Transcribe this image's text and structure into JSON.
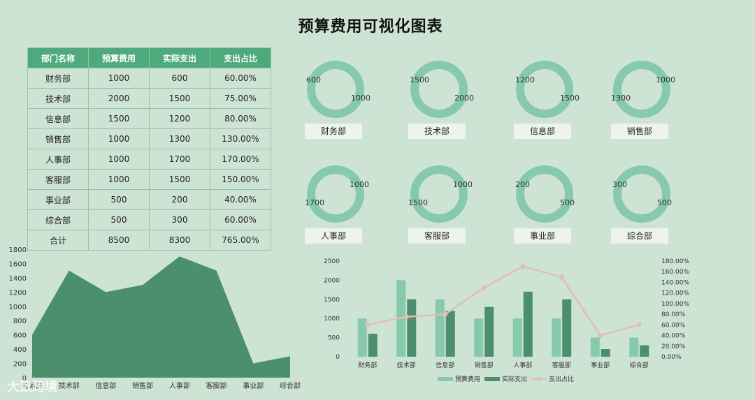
{
  "title": "预算费用可视化图表",
  "table": {
    "headers": [
      "部门名称",
      "预算费用",
      "实际支出",
      "支出占比"
    ],
    "rows": [
      [
        "财务部",
        "1000",
        "600",
        "60.00%"
      ],
      [
        "技术部",
        "2000",
        "1500",
        "75.00%"
      ],
      [
        "信息部",
        "1500",
        "1200",
        "80.00%"
      ],
      [
        "销售部",
        "1000",
        "1300",
        "130.00%"
      ],
      [
        "人事部",
        "1000",
        "1700",
        "170.00%"
      ],
      [
        "客服部",
        "1000",
        "1500",
        "150.00%"
      ],
      [
        "事业部",
        "500",
        "200",
        "40.00%"
      ],
      [
        "综合部",
        "500",
        "300",
        "60.00%"
      ],
      [
        "合计",
        "8500",
        "8300",
        "765.00%"
      ]
    ]
  },
  "colors": {
    "budget": "#86c9ad",
    "actual": "#4b8f6c",
    "ratio": "#e3bfb0",
    "header": "#4ea97d",
    "background": "#cde3d4"
  },
  "watermark": "大数跨境",
  "chart_data": [
    {
      "type": "pie",
      "variant": "donut-grid",
      "charts": [
        {
          "label": "财务部",
          "budget": 1000,
          "actual": 600
        },
        {
          "label": "技术部",
          "budget": 2000,
          "actual": 1500
        },
        {
          "label": "信息部",
          "budget": 1500,
          "actual": 1200
        },
        {
          "label": "销售部",
          "budget": 1000,
          "actual": 1300
        },
        {
          "label": "人事部",
          "budget": 1000,
          "actual": 1700
        },
        {
          "label": "客服部",
          "budget": 1000,
          "actual": 1500
        },
        {
          "label": "事业部",
          "budget": 500,
          "actual": 200
        },
        {
          "label": "综合部",
          "budget": 500,
          "actual": 300
        }
      ]
    },
    {
      "type": "area",
      "categories": [
        "财务部",
        "技术部",
        "信息部",
        "销售部",
        "人事部",
        "客服部",
        "事业部",
        "综合部"
      ],
      "values": [
        600,
        1500,
        1200,
        1300,
        1700,
        1500,
        200,
        300
      ],
      "ylim": [
        0,
        1800
      ],
      "yticks": [
        0,
        200,
        400,
        600,
        800,
        1000,
        1200,
        1400,
        1600,
        1800
      ]
    },
    {
      "type": "bar",
      "categories": [
        "财务部",
        "技术部",
        "信息部",
        "销售部",
        "人事部",
        "客服部",
        "事业部",
        "综合部"
      ],
      "series": [
        {
          "name": "预算费用",
          "values": [
            1000,
            2000,
            1500,
            1000,
            1000,
            1000,
            500,
            500
          ]
        },
        {
          "name": "实际支出",
          "values": [
            600,
            1500,
            1200,
            1300,
            1700,
            1500,
            200,
            300
          ]
        },
        {
          "name": "支出占比",
          "kind": "line",
          "axis": "right",
          "values": [
            60,
            75,
            80,
            130,
            170,
            150,
            40,
            60
          ]
        }
      ],
      "ylim": [
        0,
        2500
      ],
      "yticks": [
        0,
        500,
        1000,
        1500,
        2000,
        2500
      ],
      "y2lim": [
        0,
        180
      ],
      "y2ticks": [
        "0.00%",
        "20.00%",
        "40.00%",
        "60.00%",
        "80.00%",
        "100.00%",
        "120.00%",
        "140.00%",
        "160.00%",
        "180.00%"
      ],
      "legend": "bottom"
    }
  ]
}
